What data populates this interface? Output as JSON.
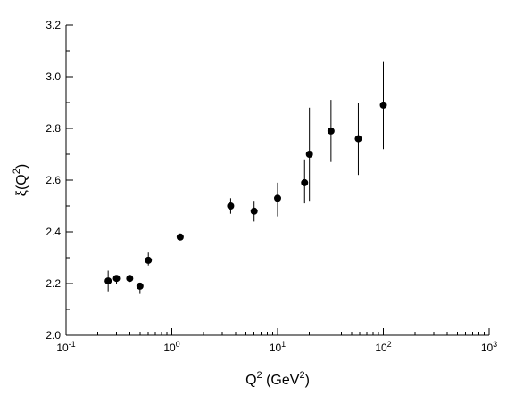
{
  "chart_data": {
    "type": "scatter",
    "title": "",
    "xscale": "log",
    "xlim": [
      0.1,
      1000
    ],
    "ylim": [
      2.0,
      3.2
    ],
    "grid": false,
    "xlabel": {
      "main": "Q",
      "exp": "2",
      "unit_prefix": " (GeV",
      "unit_exp": "2",
      "unit_suffix": ")"
    },
    "ylabel": {
      "main": "ξ(Q",
      "exp": "2",
      "suffix": ")"
    },
    "x_ticks": [
      {
        "value": 0.1,
        "base": "10",
        "exp": "-1"
      },
      {
        "value": 1,
        "base": "10",
        "exp": "0"
      },
      {
        "value": 10,
        "base": "10",
        "exp": "1"
      },
      {
        "value": 100,
        "base": "10",
        "exp": "2"
      },
      {
        "value": 1000,
        "base": "10",
        "exp": "3"
      }
    ],
    "y_ticks": [
      {
        "value": 2.0,
        "label": "2.0"
      },
      {
        "value": 2.2,
        "label": "2.2"
      },
      {
        "value": 2.4,
        "label": "2.4"
      },
      {
        "value": 2.6,
        "label": "2.6"
      },
      {
        "value": 2.8,
        "label": "2.8"
      },
      {
        "value": 3.0,
        "label": "3.0"
      },
      {
        "value": 3.2,
        "label": "3.2"
      }
    ],
    "points": [
      {
        "x": 0.25,
        "y": 2.21,
        "yerr_low": 2.17,
        "yerr_high": 2.25
      },
      {
        "x": 0.3,
        "y": 2.22,
        "yerr_low": 2.2,
        "yerr_high": 2.23
      },
      {
        "x": 0.4,
        "y": 2.22,
        "yerr_low": 2.21,
        "yerr_high": 2.22
      },
      {
        "x": 0.5,
        "y": 2.19,
        "yerr_low": 2.16,
        "yerr_high": 2.2
      },
      {
        "x": 0.6,
        "y": 2.29,
        "yerr_low": 2.27,
        "yerr_high": 2.32
      },
      {
        "x": 1.2,
        "y": 2.38,
        "yerr_low": 2.37,
        "yerr_high": 2.39
      },
      {
        "x": 3.6,
        "y": 2.5,
        "yerr_low": 2.47,
        "yerr_high": 2.53
      },
      {
        "x": 6.0,
        "y": 2.48,
        "yerr_low": 2.44,
        "yerr_high": 2.52
      },
      {
        "x": 10.0,
        "y": 2.53,
        "yerr_low": 2.46,
        "yerr_high": 2.59
      },
      {
        "x": 18.0,
        "y": 2.59,
        "yerr_low": 2.51,
        "yerr_high": 2.68
      },
      {
        "x": 20.0,
        "y": 2.7,
        "yerr_low": 2.52,
        "yerr_high": 2.88
      },
      {
        "x": 32.0,
        "y": 2.79,
        "yerr_low": 2.67,
        "yerr_high": 2.91
      },
      {
        "x": 58.0,
        "y": 2.76,
        "yerr_low": 2.62,
        "yerr_high": 2.9
      },
      {
        "x": 100.0,
        "y": 2.89,
        "yerr_low": 2.72,
        "yerr_high": 3.06
      }
    ],
    "marker_color": "#000000"
  }
}
